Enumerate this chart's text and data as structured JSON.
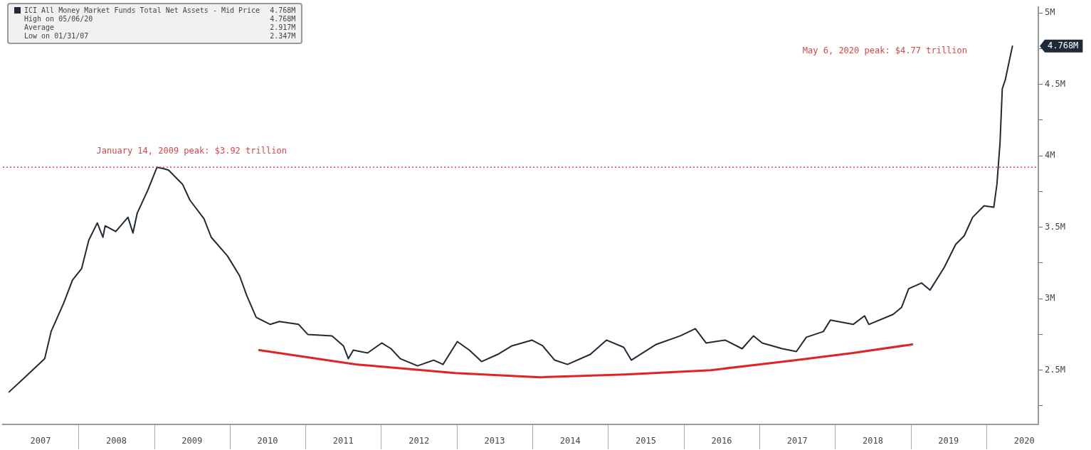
{
  "chart_data": {
    "type": "line",
    "legend": "top left",
    "marker": "none",
    "grid": false,
    "xlim": [
      "2007-01-01",
      "2020-09-08"
    ],
    "xticks": [
      {
        "value": "2007-07-02",
        "label": "2007"
      },
      {
        "value": "2008-07-02",
        "label": "2008"
      },
      {
        "value": "2009-07-02",
        "label": "2009"
      },
      {
        "value": "2010-07-02",
        "label": "2010"
      },
      {
        "value": "2011-07-02",
        "label": "2011"
      },
      {
        "value": "2012-07-02",
        "label": "2012"
      },
      {
        "value": "2013-07-02",
        "label": "2013"
      },
      {
        "value": "2014-07-02",
        "label": "2014"
      },
      {
        "value": "2015-07-02",
        "label": "2015"
      },
      {
        "value": "2016-07-02",
        "label": "2016"
      },
      {
        "value": "2017-07-02",
        "label": "2017"
      },
      {
        "value": "2018-07-02",
        "label": "2018"
      },
      {
        "value": "2019-07-02",
        "label": "2019"
      },
      {
        "value": "2020-07-02",
        "label": "2020"
      }
    ],
    "ylim": [
      2.12,
      5.04
    ],
    "yticks": [
      {
        "value": 2.25,
        "label": null
      },
      {
        "value": 2.5,
        "label": "2.5M"
      },
      {
        "value": 2.75,
        "label": null
      },
      {
        "value": 3,
        "label": "3M"
      },
      {
        "value": 3.25,
        "label": null
      },
      {
        "value": 3.5,
        "label": "3.5M"
      },
      {
        "value": 3.75,
        "label": null
      },
      {
        "value": 4,
        "label": "4M"
      },
      {
        "value": 4.25,
        "label": null
      },
      {
        "value": 4.5,
        "label": "4.5M"
      },
      {
        "value": 4.75,
        "label": null
      },
      {
        "value": 5,
        "label": "5M"
      }
    ],
    "ref_lines": [
      {
        "axis": "y",
        "value": 3.92,
        "color": "#d04848",
        "line_style": "dotted"
      }
    ],
    "annotations": [
      {
        "text": "January 14, 2009 peak: $3.92 trillion",
        "x": "2009-01-14",
        "y": 3.92
      },
      "May 6, 2020 peak: $4.77 trillion",
      "4.768M",
      "High on 05/06/20",
      "4.768M",
      "Average",
      "2.917M",
      "Low on 01/31/07",
      "2.347M",
      "4.768M"
    ],
    "series": [
      {
        "name": "ICI All Money Market Funds Total Net Assets - Mid Price",
        "color": "#1f2a36",
        "x": [
          "2007-01-31",
          "2007-04-10",
          "2007-07-22",
          "2007-08-22",
          "2007-10-22",
          "2007-12-03",
          "2008-01-16",
          "2008-02-20",
          "2008-04-01",
          "2008-04-28",
          "2008-05-09",
          "2008-06-29",
          "2008-08-27",
          "2008-09-20",
          "2008-10-11",
          "2008-12-01",
          "2009-01-14",
          "2009-02-15",
          "2009-03-11",
          "2009-05-18",
          "2009-06-22",
          "2009-08-29",
          "2009-10-03",
          "2009-12-20",
          "2010-02-17",
          "2010-03-24",
          "2010-05-08",
          "2010-07-15",
          "2010-08-28",
          "2010-11-29",
          "2011-01-12",
          "2011-05-09",
          "2011-07-03",
          "2011-07-27",
          "2011-08-20",
          "2011-10-28",
          "2012-01-04",
          "2012-02-18",
          "2012-04-03",
          "2012-06-25",
          "2012-09-11",
          "2012-10-26",
          "2013-01-03",
          "2013-03-02",
          "2013-04-30",
          "2013-07-17",
          "2013-09-24",
          "2013-12-29",
          "2014-02-19",
          "2014-04-18",
          "2014-06-19",
          "2014-10-07",
          "2014-12-24",
          "2015-03-17",
          "2015-04-23",
          "2015-08-21",
          "2015-12-16",
          "2016-02-26",
          "2016-04-18",
          "2016-07-19",
          "2016-10-09",
          "2016-12-03",
          "2017-01-14",
          "2017-04-21",
          "2017-06-28",
          "2017-08-15",
          "2017-11-05",
          "2017-12-09",
          "2018-03-29",
          "2018-05-23",
          "2018-06-13",
          "2018-10-08",
          "2018-11-18",
          "2018-12-22",
          "2019-02-22",
          "2019-04-04",
          "2019-06-12",
          "2019-08-06",
          "2019-09-16",
          "2019-10-27",
          "2019-12-21",
          "2020-02-06",
          "2020-02-21",
          "2020-03-07",
          "2020-03-18",
          "2020-04-01",
          "2020-05-06"
        ],
        "values": [
          2.347,
          2.44,
          2.58,
          2.77,
          2.97,
          3.13,
          3.21,
          3.41,
          3.53,
          3.43,
          3.51,
          3.47,
          3.57,
          3.46,
          3.6,
          3.76,
          3.92,
          3.91,
          3.9,
          3.8,
          3.69,
          3.56,
          3.43,
          3.3,
          3.16,
          3.02,
          2.87,
          2.82,
          2.84,
          2.82,
          2.75,
          2.74,
          2.67,
          2.58,
          2.64,
          2.62,
          2.69,
          2.65,
          2.58,
          2.53,
          2.57,
          2.54,
          2.7,
          2.64,
          2.56,
          2.61,
          2.67,
          2.71,
          2.67,
          2.57,
          2.54,
          2.61,
          2.71,
          2.66,
          2.57,
          2.68,
          2.74,
          2.79,
          2.69,
          2.71,
          2.65,
          2.74,
          2.69,
          2.65,
          2.63,
          2.73,
          2.77,
          2.85,
          2.82,
          2.88,
          2.82,
          2.89,
          2.94,
          3.07,
          3.11,
          3.06,
          3.22,
          3.38,
          3.44,
          3.57,
          3.65,
          3.64,
          3.8,
          4.09,
          4.47,
          4.53,
          4.768
        ]
      },
      {
        "type": "line",
        "color": "#e02424",
        "x": [
          "2010-05-23",
          "2011-08-31",
          "2012-12-23",
          "2014-02-07",
          "2015-03-26",
          "2016-05-11",
          "2017-06-28",
          "2018-03-29",
          "2019-01-08"
        ],
        "values": [
          2.64,
          2.54,
          2.48,
          2.45,
          2.47,
          2.5,
          2.57,
          2.62,
          2.68
        ]
      }
    ]
  }
}
